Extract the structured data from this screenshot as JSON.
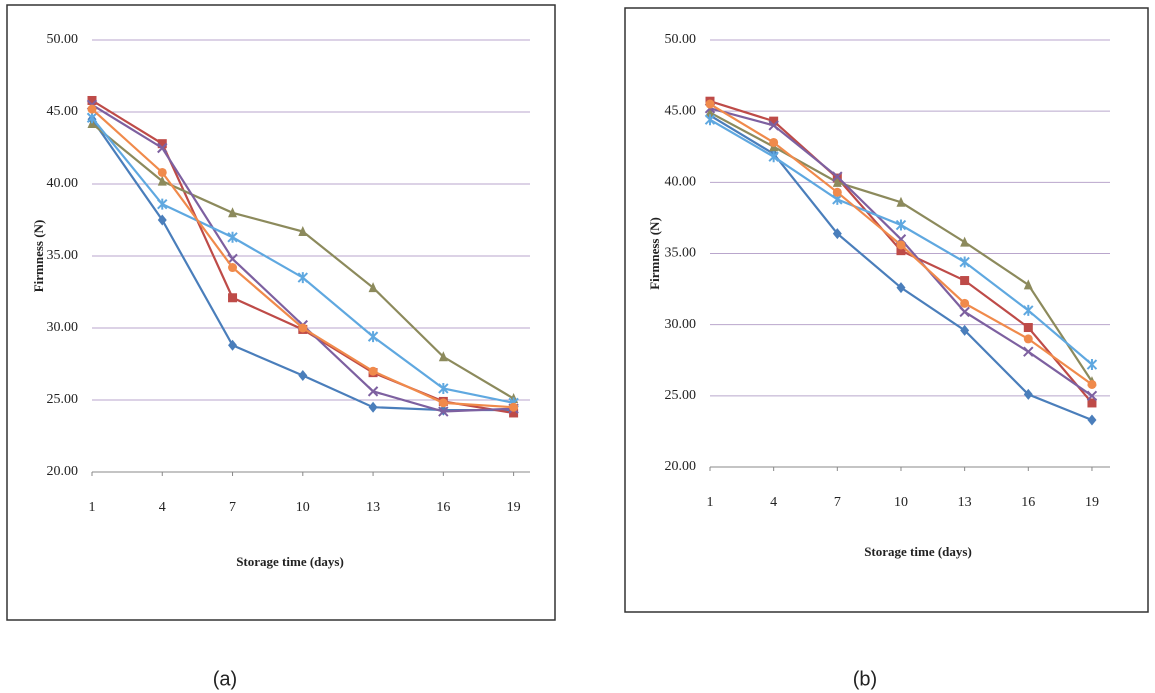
{
  "chart_data": [
    {
      "type": "line",
      "caption": "(a)",
      "x_label": "Storage time (days)",
      "y_label": "Firmness (N)",
      "x": [
        1,
        4,
        7,
        10,
        13,
        16,
        19
      ],
      "xlim": [
        1,
        19.7
      ],
      "xticks": [
        1,
        4,
        7,
        10,
        13,
        16,
        19
      ],
      "ylim": [
        20,
        50
      ],
      "yticks": [
        {
          "value": 20,
          "label": "20.00"
        },
        {
          "value": 25,
          "label": "25.00"
        },
        {
          "value": 30,
          "label": "30.00"
        },
        {
          "value": 35,
          "label": "35.00"
        },
        {
          "value": 40,
          "label": "40.00"
        },
        {
          "value": 45,
          "label": "45.00"
        },
        {
          "value": 50,
          "label": "50.00"
        }
      ],
      "grid": true,
      "series": [
        {
          "color": "#4a7ebb",
          "marker": "diamond",
          "values": [
            44.5,
            37.5,
            28.8,
            26.7,
            24.5,
            24.3,
            24.3
          ]
        },
        {
          "color": "#be4b48",
          "marker": "square",
          "values": [
            45.8,
            42.8,
            32.1,
            29.9,
            26.9,
            24.9,
            24.1
          ]
        },
        {
          "color": "#8c8a5c",
          "marker": "triangle",
          "values": [
            44.2,
            40.2,
            38.0,
            36.7,
            32.8,
            28.0,
            25.1
          ]
        },
        {
          "color": "#7d60a0",
          "marker": "x",
          "values": [
            45.5,
            42.5,
            34.8,
            30.2,
            25.6,
            24.2,
            24.4
          ]
        },
        {
          "color": "#5fa8e0",
          "marker": "star",
          "values": [
            44.6,
            38.6,
            36.3,
            33.5,
            29.4,
            25.8,
            24.8
          ]
        },
        {
          "color": "#f08a4b",
          "marker": "circle",
          "values": [
            45.2,
            40.8,
            34.2,
            30.0,
            27.0,
            24.8,
            24.5
          ]
        }
      ]
    },
    {
      "type": "line",
      "caption": "(b)",
      "x_label": "Storage time (days)",
      "y_label": "Firmness (N)",
      "x": [
        1,
        4,
        7,
        10,
        13,
        16,
        19
      ],
      "xlim": [
        1,
        19.85
      ],
      "xticks": [
        1,
        4,
        7,
        10,
        13,
        16,
        19
      ],
      "ylim": [
        20,
        50
      ],
      "yticks": [
        {
          "value": 20,
          "label": "20.00"
        },
        {
          "value": 25,
          "label": "25.00"
        },
        {
          "value": 30,
          "label": "30.00"
        },
        {
          "value": 35,
          "label": "35.00"
        },
        {
          "value": 40,
          "label": "40.00"
        },
        {
          "value": 45,
          "label": "45.00"
        },
        {
          "value": 50,
          "label": "50.00"
        }
      ],
      "grid": true,
      "series": [
        {
          "color": "#4a7ebb",
          "marker": "diamond",
          "values": [
            44.7,
            42.0,
            36.4,
            32.6,
            29.6,
            25.1,
            23.3
          ]
        },
        {
          "color": "#be4b48",
          "marker": "square",
          "values": [
            45.7,
            44.3,
            40.3,
            35.2,
            33.1,
            29.8,
            24.5
          ]
        },
        {
          "color": "#8c8a5c",
          "marker": "triangle",
          "values": [
            44.9,
            42.5,
            40.0,
            38.6,
            35.8,
            32.8,
            26.0
          ]
        },
        {
          "color": "#7d60a0",
          "marker": "x",
          "values": [
            45.2,
            44.0,
            40.4,
            36.0,
            30.9,
            28.1,
            25.0
          ]
        },
        {
          "color": "#5fa8e0",
          "marker": "star",
          "values": [
            44.4,
            41.8,
            38.8,
            37.0,
            34.4,
            31.0,
            27.2
          ]
        },
        {
          "color": "#f08a4b",
          "marker": "circle",
          "values": [
            45.5,
            42.8,
            39.3,
            35.6,
            31.5,
            29.0,
            25.8
          ]
        }
      ]
    }
  ]
}
